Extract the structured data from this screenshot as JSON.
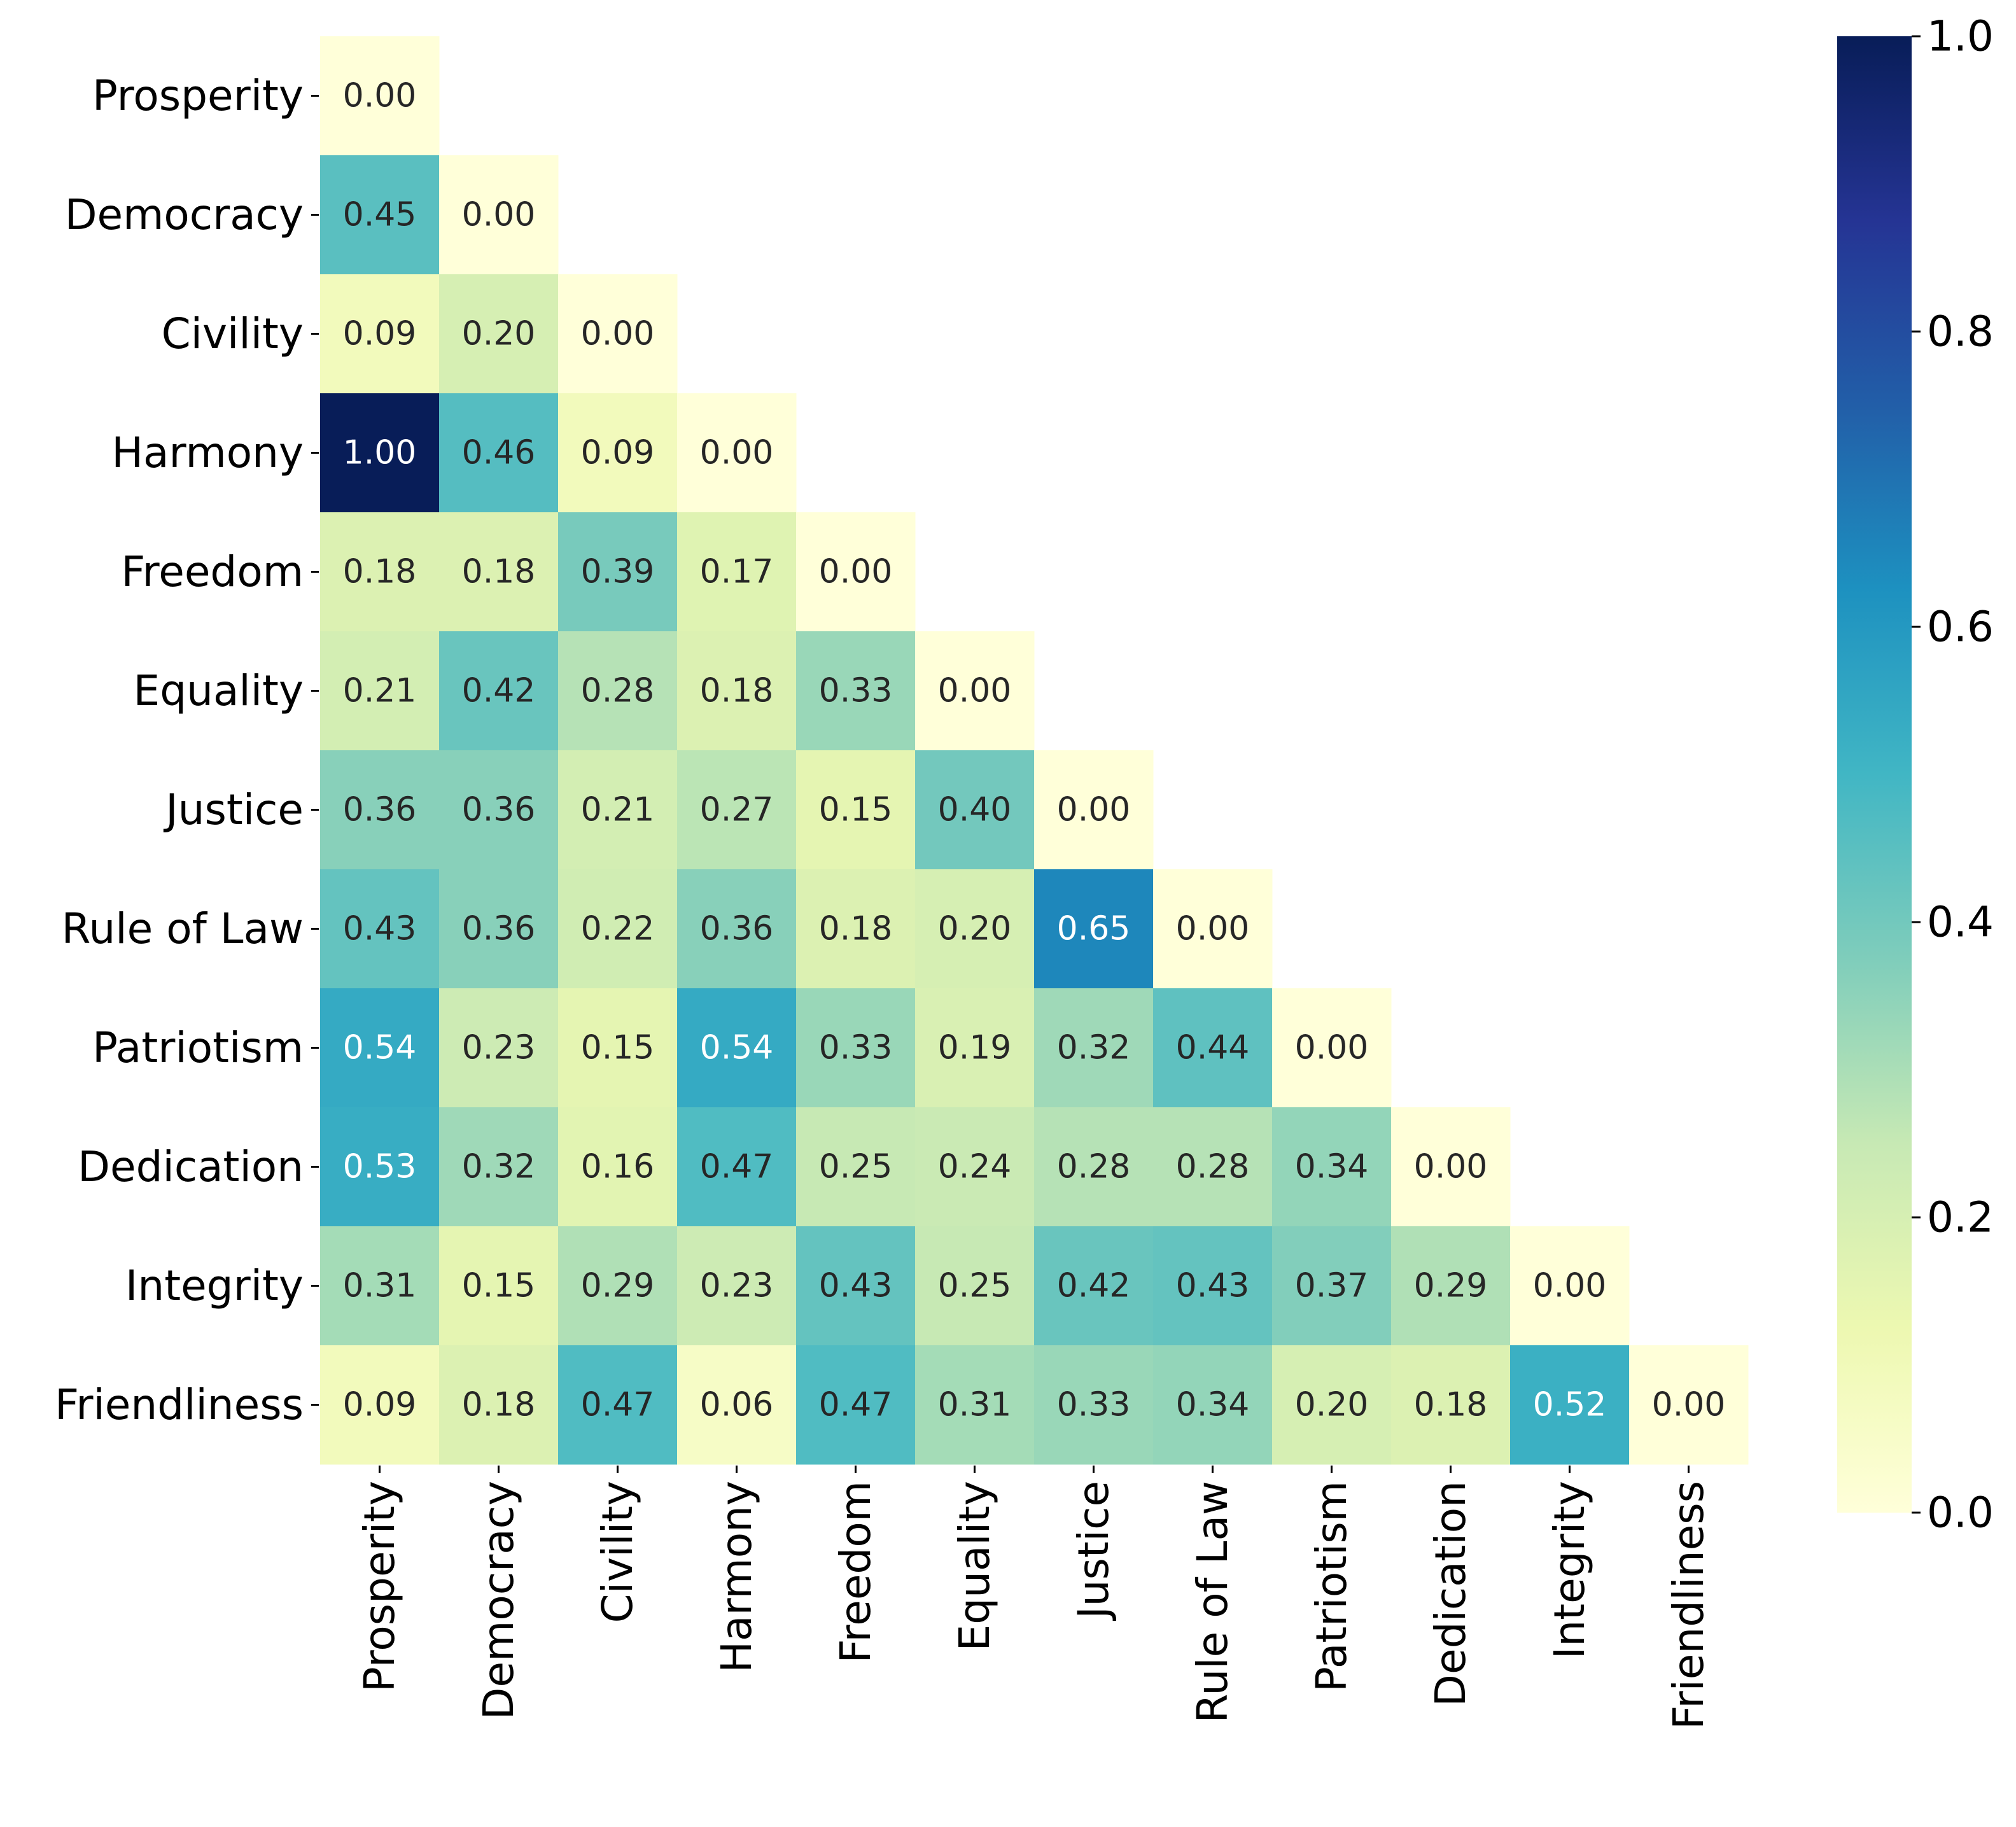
{
  "chart_data": {
    "type": "heatmap",
    "title": "",
    "xlabel": "",
    "ylabel": "",
    "row_labels": [
      "Prosperity",
      "Democracy",
      "Civility",
      "Harmony",
      "Freedom",
      "Equality",
      "Justice",
      "Rule of Law",
      "Patriotism",
      "Dedication",
      "Integrity",
      "Friendliness"
    ],
    "col_labels": [
      "Prosperity",
      "Democracy",
      "Civility",
      "Harmony",
      "Freedom",
      "Equality",
      "Justice",
      "Rule of Law",
      "Patriotism",
      "Dedication",
      "Integrity",
      "Friendliness"
    ],
    "mask": "upper-triangle",
    "values": [
      [
        0.0
      ],
      [
        0.45,
        0.0
      ],
      [
        0.09,
        0.2,
        0.0
      ],
      [
        1.0,
        0.46,
        0.09,
        0.0
      ],
      [
        0.18,
        0.18,
        0.39,
        0.17,
        0.0
      ],
      [
        0.21,
        0.42,
        0.28,
        0.18,
        0.33,
        0.0
      ],
      [
        0.36,
        0.36,
        0.21,
        0.27,
        0.15,
        0.4,
        0.0
      ],
      [
        0.43,
        0.36,
        0.22,
        0.36,
        0.18,
        0.2,
        0.65,
        0.0
      ],
      [
        0.54,
        0.23,
        0.15,
        0.54,
        0.33,
        0.19,
        0.32,
        0.44,
        0.0
      ],
      [
        0.53,
        0.32,
        0.16,
        0.47,
        0.25,
        0.24,
        0.28,
        0.28,
        0.34,
        0.0
      ],
      [
        0.31,
        0.15,
        0.29,
        0.23,
        0.43,
        0.25,
        0.42,
        0.43,
        0.37,
        0.29,
        0.0
      ],
      [
        0.09,
        0.18,
        0.47,
        0.06,
        0.47,
        0.31,
        0.33,
        0.34,
        0.2,
        0.18,
        0.52,
        0.0
      ]
    ],
    "value_format": "0.00",
    "colormap": "YlGnBu",
    "vmin": 0.0,
    "vmax": 1.0,
    "colorbar": {
      "ticks": [
        0.0,
        0.2,
        0.4,
        0.6,
        0.8,
        1.0
      ],
      "tick_labels": [
        "0.0",
        "0.2",
        "0.4",
        "0.6",
        "0.8",
        "1.0"
      ],
      "position": "right"
    },
    "colormap_stops": [
      "#ffffd9",
      "#edf8b1",
      "#c7e9b4",
      "#7fcdbb",
      "#41b6c4",
      "#1d91c0",
      "#225ea8",
      "#253494",
      "#081d58"
    ],
    "text_colors": {
      "dark": "#262626",
      "light": "#ffffff"
    }
  }
}
